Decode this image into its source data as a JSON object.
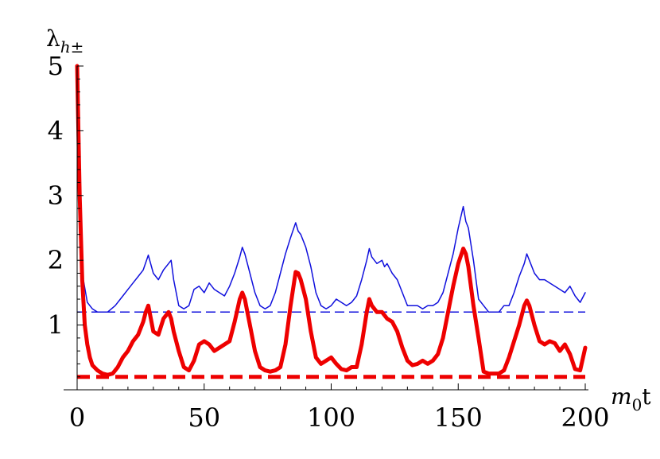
{
  "chart_data": {
    "type": "line",
    "title": "",
    "ylabel": {
      "base": "λ",
      "sub": "h±"
    },
    "xlabel": {
      "base": "m",
      "sub": "0",
      "tail": "t"
    },
    "xlim": [
      0,
      200
    ],
    "ylim": [
      0,
      5
    ],
    "x_ticks": [
      0,
      50,
      100,
      150,
      200
    ],
    "x_tick_labels": [
      "0",
      "50",
      "100",
      "150",
      "200"
    ],
    "y_ticks": [
      1,
      2,
      3,
      4,
      5
    ],
    "y_tick_labels": [
      "1",
      "2",
      "3",
      "4",
      "5"
    ],
    "grid": false,
    "legend": "none",
    "series": [
      {
        "color": "#1010dd",
        "style": "solid-thin",
        "x": [
          0,
          1,
          2,
          4,
          6,
          8,
          10,
          12,
          15,
          18,
          20,
          22,
          24,
          26,
          28,
          30,
          32,
          34,
          36,
          37,
          38,
          40,
          42,
          44,
          46,
          48,
          50,
          52,
          54,
          56,
          58,
          60,
          62,
          64,
          65,
          66,
          68,
          70,
          72,
          74,
          76,
          78,
          80,
          82,
          84,
          86,
          87,
          88,
          90,
          92,
          94,
          96,
          98,
          100,
          102,
          104,
          106,
          108,
          110,
          112,
          114,
          115,
          116,
          118,
          120,
          121,
          122,
          124,
          126,
          128,
          130,
          132,
          134,
          136,
          138,
          140,
          142,
          144,
          146,
          148,
          150,
          152,
          153,
          154,
          156,
          158,
          160,
          162,
          164,
          166,
          168,
          170,
          172,
          174,
          176,
          177,
          178,
          180,
          182,
          184,
          186,
          188,
          190,
          192,
          194,
          196,
          198,
          200
        ],
        "values": [
          5.0,
          2.8,
          1.8,
          1.35,
          1.25,
          1.2,
          1.2,
          1.2,
          1.3,
          1.45,
          1.55,
          1.65,
          1.75,
          1.85,
          2.08,
          1.8,
          1.7,
          1.85,
          1.95,
          2.0,
          1.7,
          1.3,
          1.25,
          1.3,
          1.55,
          1.6,
          1.5,
          1.65,
          1.55,
          1.5,
          1.45,
          1.6,
          1.8,
          2.05,
          2.2,
          2.1,
          1.8,
          1.5,
          1.3,
          1.25,
          1.3,
          1.5,
          1.8,
          2.1,
          2.35,
          2.58,
          2.45,
          2.4,
          2.2,
          1.9,
          1.5,
          1.3,
          1.25,
          1.3,
          1.4,
          1.35,
          1.3,
          1.35,
          1.45,
          1.7,
          2.0,
          2.18,
          2.05,
          1.95,
          2.0,
          1.9,
          1.95,
          1.8,
          1.7,
          1.5,
          1.3,
          1.3,
          1.3,
          1.25,
          1.3,
          1.3,
          1.35,
          1.5,
          1.8,
          2.1,
          2.5,
          2.83,
          2.6,
          2.5,
          2.0,
          1.4,
          1.3,
          1.2,
          1.2,
          1.2,
          1.3,
          1.3,
          1.5,
          1.75,
          1.95,
          2.1,
          2.0,
          1.8,
          1.7,
          1.7,
          1.65,
          1.6,
          1.55,
          1.5,
          1.6,
          1.45,
          1.35,
          1.5
        ]
      },
      {
        "color": "#1010dd",
        "style": "dashed-thin",
        "x": [
          0,
          200
        ],
        "values": [
          1.2,
          1.2
        ]
      },
      {
        "color": "#ee0000",
        "style": "solid-thick",
        "x": [
          0,
          1,
          2,
          3,
          4,
          5,
          6,
          8,
          10,
          12,
          14,
          15,
          16,
          18,
          20,
          22,
          24,
          26,
          27,
          28,
          29,
          30,
          32,
          34,
          36,
          37,
          38,
          40,
          42,
          44,
          46,
          48,
          50,
          52,
          54,
          56,
          58,
          60,
          62,
          64,
          65,
          66,
          68,
          70,
          72,
          74,
          76,
          78,
          80,
          82,
          84,
          86,
          87,
          88,
          90,
          92,
          94,
          96,
          98,
          100,
          102,
          104,
          106,
          108,
          110,
          112,
          114,
          115,
          116,
          118,
          120,
          122,
          124,
          126,
          128,
          130,
          132,
          134,
          136,
          138,
          140,
          142,
          144,
          146,
          148,
          150,
          152,
          153,
          154,
          156,
          158,
          160,
          162,
          164,
          166,
          168,
          170,
          172,
          174,
          176,
          177,
          178,
          180,
          182,
          184,
          186,
          188,
          190,
          192,
          194,
          196,
          198,
          200
        ],
        "values": [
          5.0,
          3.0,
          1.7,
          1.0,
          0.7,
          0.5,
          0.38,
          0.3,
          0.25,
          0.23,
          0.25,
          0.3,
          0.35,
          0.5,
          0.6,
          0.75,
          0.85,
          1.05,
          1.2,
          1.3,
          1.1,
          0.9,
          0.85,
          1.1,
          1.2,
          1.1,
          0.9,
          0.6,
          0.35,
          0.3,
          0.45,
          0.7,
          0.75,
          0.7,
          0.6,
          0.65,
          0.7,
          0.75,
          1.05,
          1.4,
          1.5,
          1.4,
          1.0,
          0.6,
          0.35,
          0.3,
          0.28,
          0.3,
          0.35,
          0.7,
          1.3,
          1.82,
          1.8,
          1.7,
          1.4,
          0.9,
          0.5,
          0.4,
          0.45,
          0.5,
          0.4,
          0.32,
          0.3,
          0.35,
          0.35,
          0.7,
          1.2,
          1.4,
          1.3,
          1.2,
          1.2,
          1.1,
          1.05,
          0.9,
          0.65,
          0.45,
          0.38,
          0.4,
          0.45,
          0.4,
          0.45,
          0.55,
          0.8,
          1.2,
          1.6,
          1.95,
          2.18,
          2.1,
          1.9,
          1.3,
          0.8,
          0.28,
          0.25,
          0.25,
          0.25,
          0.3,
          0.5,
          0.75,
          1.0,
          1.3,
          1.38,
          1.3,
          1.0,
          0.75,
          0.7,
          0.75,
          0.72,
          0.6,
          0.7,
          0.55,
          0.32,
          0.3,
          0.65
        ]
      },
      {
        "color": "#ee0000",
        "style": "dashed-thick",
        "x": [
          0,
          200
        ],
        "values": [
          0.2,
          0.2
        ]
      }
    ]
  }
}
